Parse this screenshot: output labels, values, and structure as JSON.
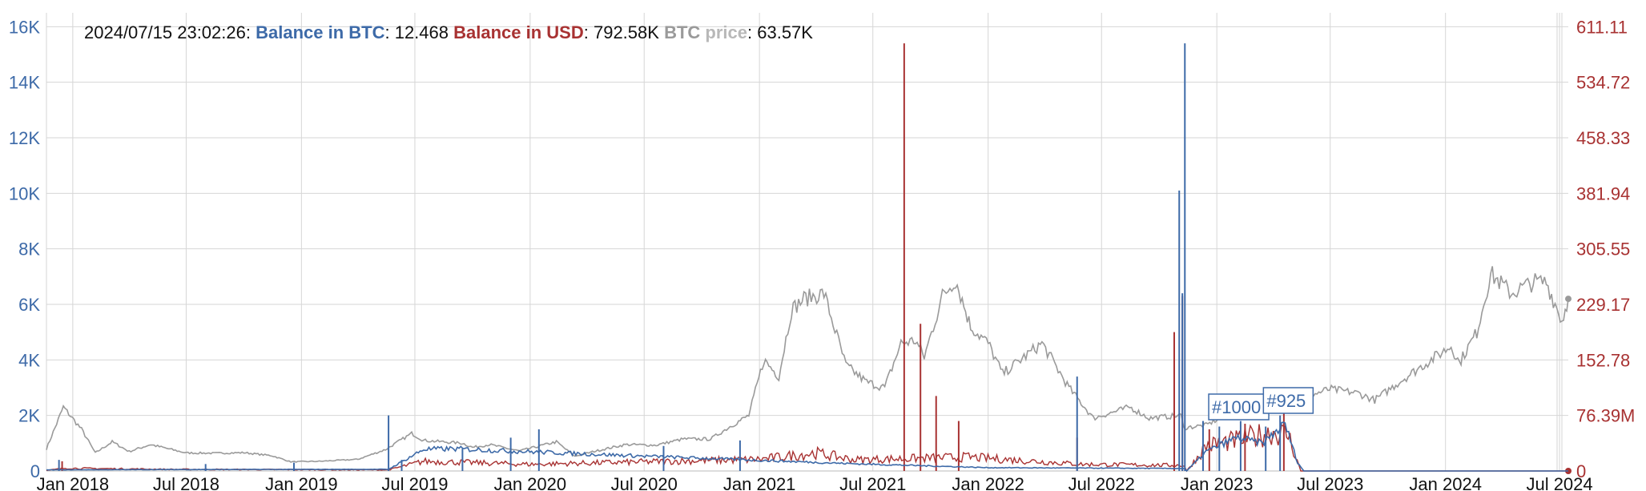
{
  "legend": {
    "timestamp": "2024/07/15 23:02:26",
    "sep": ": ",
    "btc_label": "Balance in BTC",
    "btc_value": "12.468",
    "usd_label": "Balance in USD",
    "usd_value": "792.58K",
    "price_label_a": "BTC",
    "price_label_b": "price",
    "price_value": "63.57K"
  },
  "colors": {
    "btc": "#3d6aa8",
    "usd": "#a83232",
    "price": "#9a9a9a",
    "grid": "#d6d6d6"
  },
  "chart_data": {
    "type": "line",
    "x_range": [
      "2017-11-20",
      "2024-07-15"
    ],
    "left_axis": {
      "name": "Balance in BTC",
      "range": [
        0,
        16500
      ],
      "ticks": [
        "0",
        "2K",
        "4K",
        "6K",
        "8K",
        "10K",
        "12K",
        "14K",
        "16K"
      ]
    },
    "right_axis": {
      "name": "Balance in USD",
      "ticks": [
        "0",
        "76.39M",
        "152.78",
        "229.17",
        "305.55",
        "381.94",
        "458.33",
        "534.72",
        "611.11"
      ]
    },
    "x_ticks": [
      "Jan 2018",
      "Jul 2018",
      "Jan 2019",
      "Jul 2019",
      "Jan 2020",
      "Jul 2020",
      "Jan 2021",
      "Jul 2021",
      "Jan 2022",
      "Jul 2022",
      "Jan 2023",
      "Jul 2023",
      "Jan 2024",
      "Jul 2024"
    ],
    "grid": true,
    "series": [
      {
        "name": "BTC price",
        "points": [
          [
            "2017-11-20",
            800
          ],
          [
            "2017-12-17",
            2300
          ],
          [
            "2018-01-15",
            1500
          ],
          [
            "2018-02-06",
            650
          ],
          [
            "2018-03-05",
            1050
          ],
          [
            "2018-04-01",
            700
          ],
          [
            "2018-05-05",
            950
          ],
          [
            "2018-07-01",
            650
          ],
          [
            "2018-08-15",
            640
          ],
          [
            "2018-10-01",
            660
          ],
          [
            "2018-11-15",
            550
          ],
          [
            "2018-12-15",
            330
          ],
          [
            "2019-02-01",
            350
          ],
          [
            "2019-04-01",
            420
          ],
          [
            "2019-05-15",
            770
          ],
          [
            "2019-06-26",
            1350
          ],
          [
            "2019-07-15",
            1100
          ],
          [
            "2019-08-15",
            1050
          ],
          [
            "2019-09-15",
            1000
          ],
          [
            "2019-10-01",
            850
          ],
          [
            "2019-10-28",
            950
          ],
          [
            "2019-12-15",
            720
          ],
          [
            "2020-02-12",
            1050
          ],
          [
            "2020-03-12",
            530
          ],
          [
            "2020-04-15",
            720
          ],
          [
            "2020-06-01",
            950
          ],
          [
            "2020-07-20",
            930
          ],
          [
            "2020-09-01",
            1150
          ],
          [
            "2020-10-15",
            1150
          ],
          [
            "2020-11-15",
            1600
          ],
          [
            "2020-12-15",
            2000
          ],
          [
            "2021-01-08",
            4000
          ],
          [
            "2021-02-01",
            3400
          ],
          [
            "2021-02-21",
            5800
          ],
          [
            "2021-03-13",
            6200
          ],
          [
            "2021-04-14",
            6400
          ],
          [
            "2021-05-19",
            3800
          ],
          [
            "2021-06-21",
            3200
          ],
          [
            "2021-07-20",
            3000
          ],
          [
            "2021-08-15",
            4600
          ],
          [
            "2021-09-07",
            4700
          ],
          [
            "2021-09-21",
            4100
          ],
          [
            "2021-10-20",
            6300
          ],
          [
            "2021-11-10",
            6900
          ],
          [
            "2021-12-04",
            5200
          ],
          [
            "2022-01-01",
            4600
          ],
          [
            "2022-01-24",
            3500
          ],
          [
            "2022-03-28",
            4600
          ],
          [
            "2022-05-10",
            3000
          ],
          [
            "2022-06-18",
            1900
          ],
          [
            "2022-08-15",
            2300
          ],
          [
            "2022-09-15",
            1900
          ],
          [
            "2022-11-05",
            2000
          ],
          [
            "2022-11-09",
            1550
          ],
          [
            "2022-12-15",
            1650
          ],
          [
            "2023-01-15",
            2000
          ],
          [
            "2023-03-10",
            1950
          ],
          [
            "2023-04-14",
            2900
          ],
          [
            "2023-05-15",
            2600
          ],
          [
            "2023-06-30",
            2950
          ],
          [
            "2023-08-15",
            2800
          ],
          [
            "2023-09-10",
            2550
          ],
          [
            "2023-10-25",
            3300
          ],
          [
            "2023-12-15",
            4100
          ],
          [
            "2024-01-10",
            4500
          ],
          [
            "2024-01-23",
            3900
          ],
          [
            "2024-02-20",
            5000
          ],
          [
            "2024-03-13",
            7100
          ],
          [
            "2024-04-15",
            6400
          ],
          [
            "2024-05-20",
            6800
          ],
          [
            "2024-06-10",
            6800
          ],
          [
            "2024-07-05",
            5400
          ],
          [
            "2024-07-15",
            6200
          ]
        ]
      },
      {
        "name": "Balance in BTC",
        "points": [
          [
            "2017-11-20",
            40
          ],
          [
            "2018-05-01",
            50
          ],
          [
            "2019-05-20",
            60
          ],
          [
            "2019-07-15",
            780
          ],
          [
            "2019-09-01",
            800
          ],
          [
            "2020-06-01",
            560
          ],
          [
            "2021-06-01",
            260
          ],
          [
            "2022-01-01",
            120
          ],
          [
            "2022-11-10",
            90
          ],
          [
            "2022-11-14",
            0
          ],
          [
            "2022-12-15",
            700
          ],
          [
            "2023-02-01",
            1200
          ],
          [
            "2023-03-15",
            1000
          ],
          [
            "2023-04-20",
            1700
          ],
          [
            "2023-05-10",
            300
          ],
          [
            "2023-05-20",
            0
          ],
          [
            "2024-07-15",
            0
          ]
        ],
        "spikes": [
          [
            "2017-12-10",
            400
          ],
          [
            "2018-08-01",
            250
          ],
          [
            "2018-12-20",
            300
          ],
          [
            "2019-05-20",
            2000
          ],
          [
            "2019-06-10",
            400
          ],
          [
            "2019-09-15",
            800
          ],
          [
            "2019-12-01",
            1200
          ],
          [
            "2020-01-15",
            1500
          ],
          [
            "2020-08-01",
            900
          ],
          [
            "2020-12-01",
            1100
          ],
          [
            "2022-05-23",
            3400
          ],
          [
            "2022-11-02",
            10100
          ],
          [
            "2022-11-07",
            6400
          ],
          [
            "2022-11-11",
            15400
          ],
          [
            "2022-12-10",
            1800
          ],
          [
            "2023-01-05",
            1600
          ],
          [
            "2023-02-08",
            1800
          ],
          [
            "2023-03-20",
            1600
          ],
          [
            "2023-04-12",
            2000
          ]
        ]
      },
      {
        "name": "Balance in USD",
        "points": [
          [
            "2017-11-20",
            20
          ],
          [
            "2017-12-20",
            100
          ],
          [
            "2018-06-01",
            60
          ],
          [
            "2019-05-20",
            40
          ],
          [
            "2019-07-15",
            350
          ],
          [
            "2020-01-01",
            240
          ],
          [
            "2021-01-01",
            420
          ],
          [
            "2021-04-01",
            650
          ],
          [
            "2021-06-01",
            400
          ],
          [
            "2021-12-01",
            500
          ],
          [
            "2022-06-01",
            240
          ],
          [
            "2022-11-10",
            200
          ],
          [
            "2022-11-14",
            0
          ],
          [
            "2022-12-15",
            900
          ],
          [
            "2023-02-01",
            1100
          ],
          [
            "2023-04-01",
            1400
          ],
          [
            "2023-04-25",
            1300
          ],
          [
            "2023-05-15",
            0
          ],
          [
            "2024-07-15",
            0
          ]
        ],
        "spikes": [
          [
            "2017-12-15",
            350
          ],
          [
            "2021-08-20",
            15400
          ],
          [
            "2021-09-15",
            5300
          ],
          [
            "2021-10-10",
            2700
          ],
          [
            "2021-11-15",
            1800
          ],
          [
            "2022-05-23",
            1200
          ],
          [
            "2022-10-25",
            5000
          ],
          [
            "2022-11-07",
            6300
          ],
          [
            "2022-12-20",
            1500
          ],
          [
            "2023-02-15",
            1700
          ],
          [
            "2023-04-18",
            2500
          ]
        ]
      }
    ],
    "annotations": [
      {
        "label": "#1000",
        "x": "2023-02-05"
      },
      {
        "label": "#925",
        "x": "2023-04-25"
      }
    ]
  }
}
